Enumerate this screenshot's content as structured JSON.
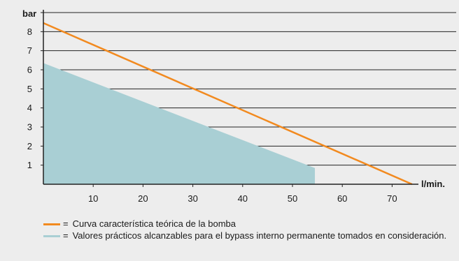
{
  "chart_data": {
    "type": "line",
    "xlabel": "l/min.",
    "ylabel": "bar",
    "xlim": [
      0,
      75
    ],
    "ylim": [
      0,
      9
    ],
    "xticks": [
      10,
      20,
      30,
      40,
      50,
      60,
      70
    ],
    "yticks": [
      1,
      2,
      3,
      4,
      5,
      6,
      7,
      8
    ],
    "grid": "horizontal",
    "colors": {
      "curve": "#f28a1f",
      "area": "#a9cfd4"
    },
    "series": [
      {
        "id": "curve",
        "type": "line",
        "x": [
          0,
          74
        ],
        "y": [
          8.45,
          0
        ]
      },
      {
        "id": "area",
        "type": "area",
        "x": [
          0,
          54.5,
          54.5
        ],
        "y": [
          6.35,
          0.85,
          0
        ]
      }
    ],
    "legend": {
      "placement": "bottom",
      "equals": "=",
      "items": [
        {
          "series": "curve",
          "text": "Curva característica teórica de la bomba"
        },
        {
          "series": "area",
          "text": "Valores prácticos alcanzables para el bypass interno permanente tomados en consideración."
        }
      ]
    }
  }
}
